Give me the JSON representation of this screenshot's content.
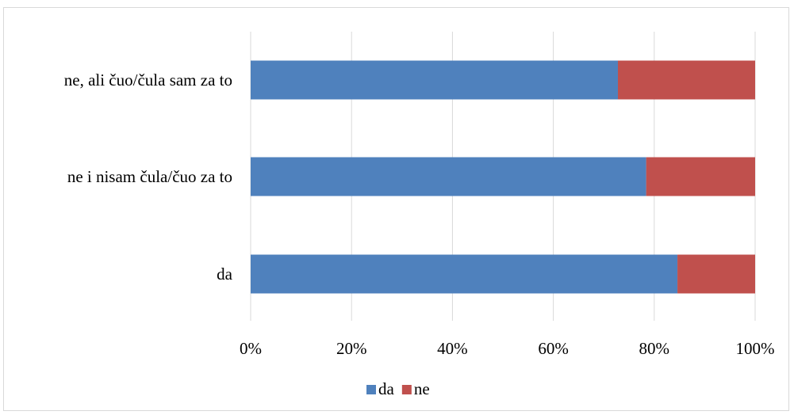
{
  "chart_data": {
    "type": "bar",
    "orientation": "horizontal",
    "stacked": "percent",
    "categories": [
      "ne, ali čuo/čula sam za to",
      "ne i nisam čula/čuo za to",
      "da"
    ],
    "series": [
      {
        "name": "da",
        "values": [
          72.8,
          78.4,
          84.6
        ],
        "color": "#4f81bd"
      },
      {
        "name": "ne",
        "values": [
          27.2,
          21.6,
          15.4
        ],
        "color": "#c0504d"
      }
    ],
    "xlim": [
      0,
      100
    ],
    "x_ticks": [
      "0%",
      "20%",
      "40%",
      "60%",
      "80%",
      "100%"
    ],
    "title": "",
    "xlabel": "",
    "ylabel": "",
    "grid": "vertical",
    "legend": "bottom-center"
  }
}
